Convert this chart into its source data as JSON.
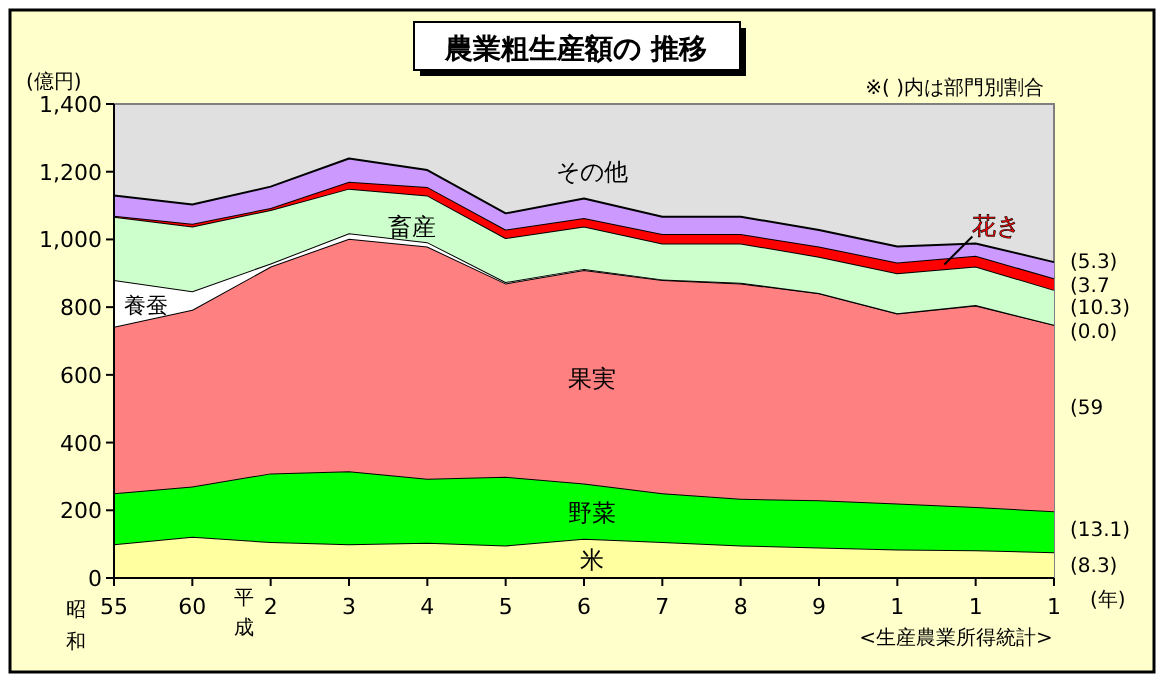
{
  "chart_data": {
    "type": "area",
    "stacked": true,
    "title": "農業粗生産額の 推移",
    "ylabel": "(億円)",
    "xlabel": "(年)",
    "categories": [
      "55",
      "60",
      "2",
      "3",
      "4",
      "5",
      "6",
      "7",
      "8",
      "9",
      "1",
      "1",
      "1"
    ],
    "ylim": [
      0,
      1400
    ],
    "yticks": [
      0,
      200,
      400,
      600,
      800,
      {
        "value": 1000,
        "label": "1,000"
      },
      {
        "value": 1200,
        "label": "1,200"
      },
      {
        "value": 1400,
        "label": "1,400"
      }
    ],
    "series": [
      {
        "name": "米",
        "color": "#ffffa0",
        "values": [
          100,
          122,
          106,
          100,
          104,
          96,
          116,
          106,
          96,
          90,
          84,
          82,
          76
        ]
      },
      {
        "name": "野菜",
        "color": "#00ff00",
        "values": [
          150,
          148,
          203,
          215,
          189,
          203,
          163,
          144,
          138,
          140,
          136,
          128,
          121
        ]
      },
      {
        "name": "果実",
        "color": "#ff8080",
        "values": [
          492,
          522,
          611,
          687,
          686,
          571,
          631,
          630,
          636,
          611,
          561,
          595,
          551
        ]
      },
      {
        "name": "養蚕",
        "color": "#ffffff",
        "values": [
          138,
          55,
          9,
          16,
          13,
          4,
          3,
          2,
          2,
          1,
          1,
          1,
          0
        ]
      },
      {
        "name": "畜産",
        "color": "#ccffcc",
        "values": [
          187,
          191,
          158,
          132,
          138,
          130,
          125,
          106,
          116,
          107,
          118,
          114,
          103
        ]
      },
      {
        "name": "花き",
        "color": "#ff0000",
        "values": [
          3,
          8,
          6,
          20,
          25,
          25,
          25,
          28,
          28,
          30,
          32,
          32,
          34
        ]
      },
      {
        "name": "その他",
        "color": "#cc99ff",
        "values": [
          60,
          57,
          63,
          69,
          50,
          48,
          58,
          51,
          51,
          49,
          47,
          36,
          48
        ]
      }
    ],
    "annotations": [
      "※( )内は部門別割合",
      "<生産農業所得統計>",
      "昭和",
      "平成",
      "(5.3)",
      "(3.7",
      "(10.3)",
      "(0.0)",
      "(59",
      "(13.1)",
      "(8.3)"
    ]
  }
}
